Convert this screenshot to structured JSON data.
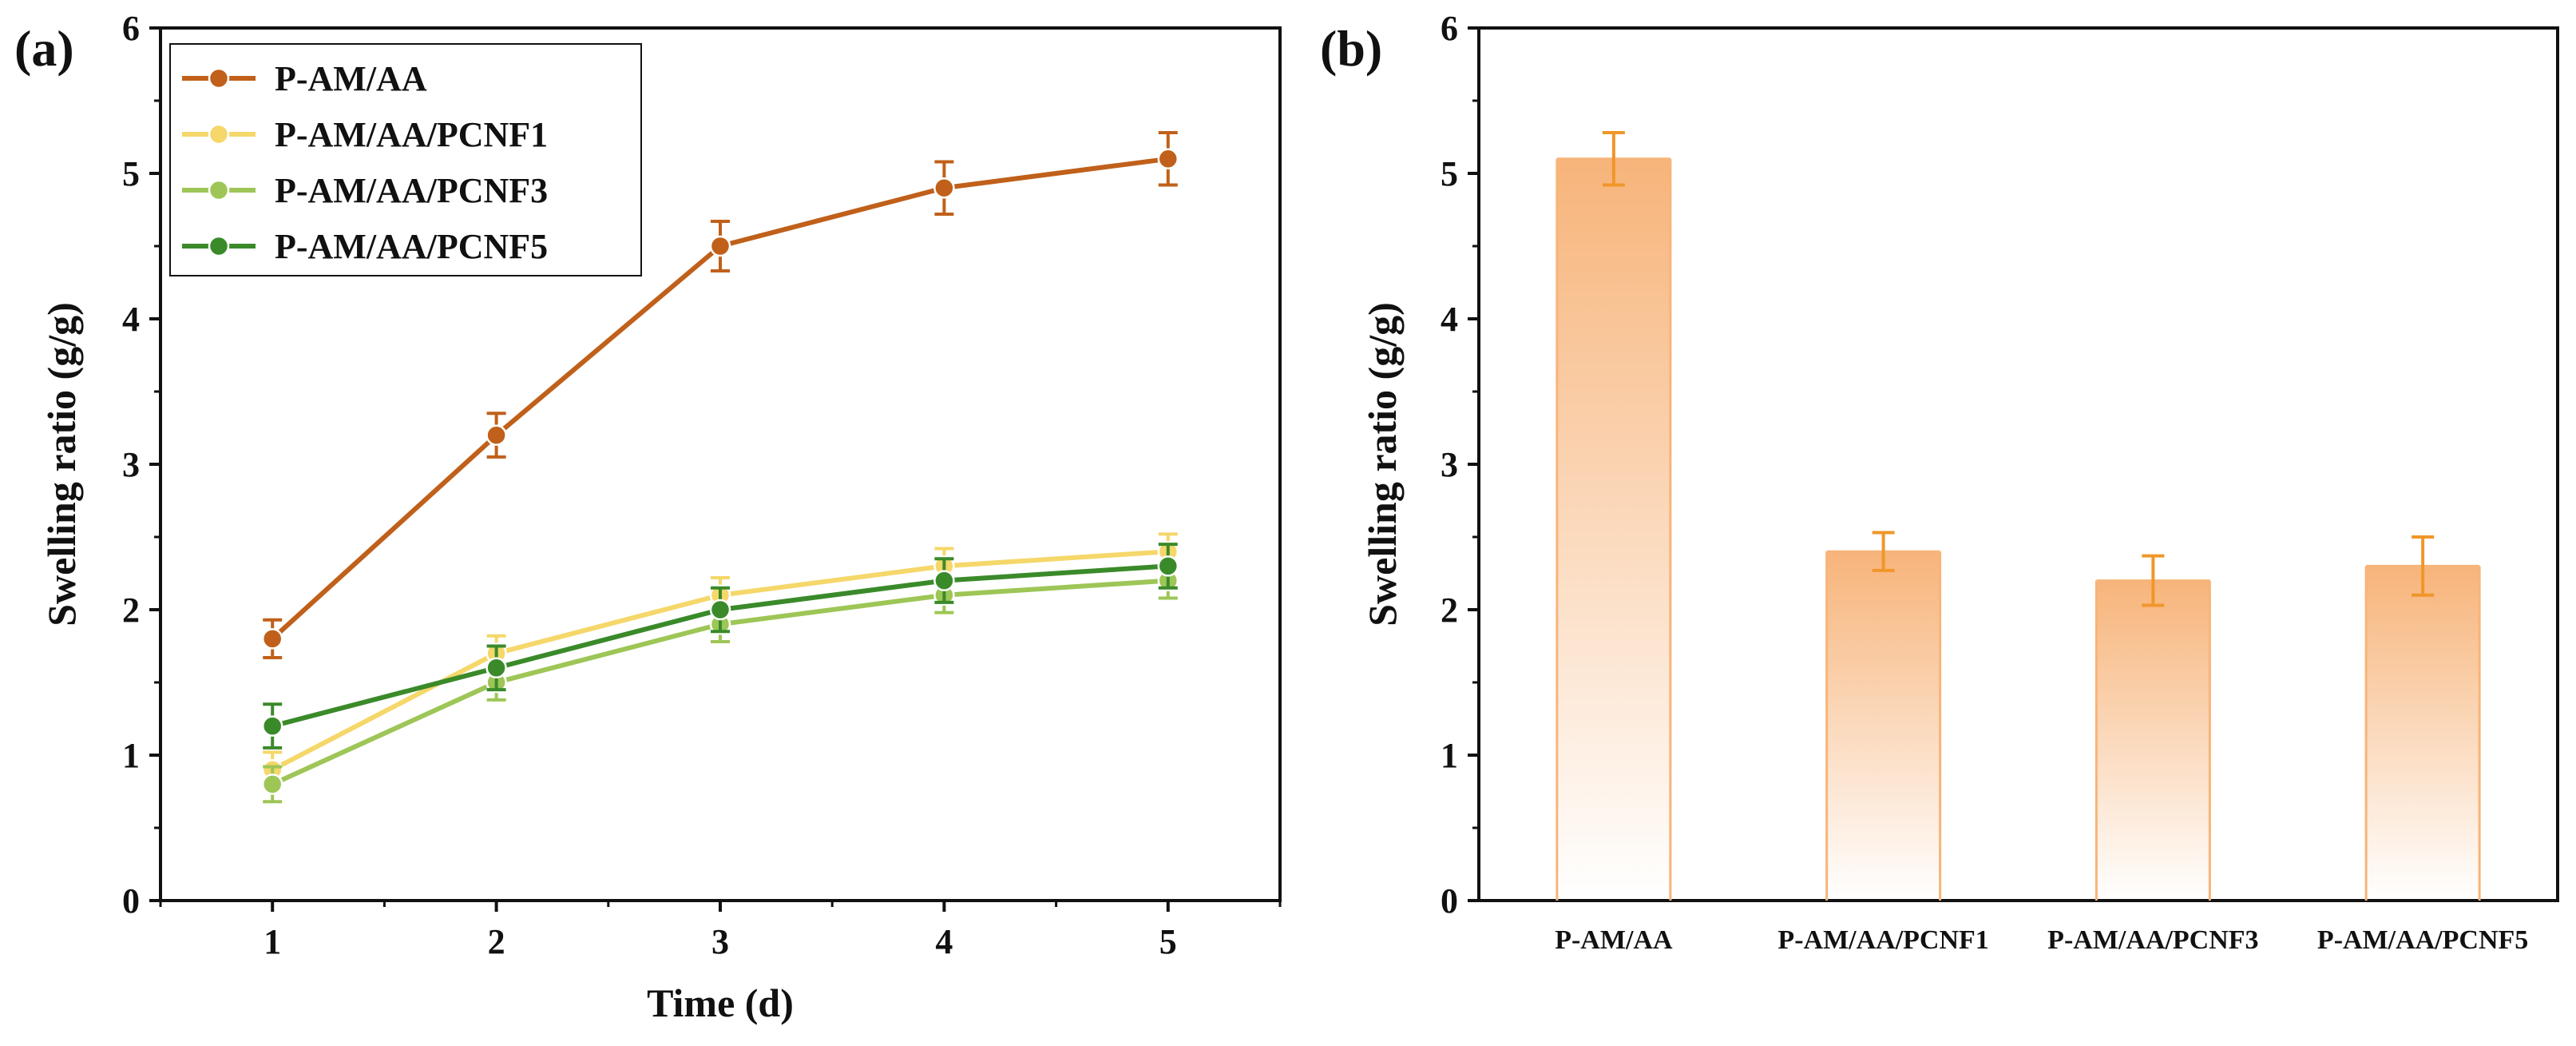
{
  "chart_data": [
    {
      "panel_label": "(a)",
      "type": "line",
      "xlabel": "Time (d)",
      "ylabel": "Swelling ratio (g/g)",
      "x": [
        1,
        2,
        3,
        4,
        5
      ],
      "xticks": [
        "1",
        "2",
        "3",
        "4",
        "5"
      ],
      "yticks": [
        "0",
        "1",
        "2",
        "3",
        "4",
        "5",
        "6"
      ],
      "xlim": [
        0.5,
        5.5
      ],
      "ylim": [
        0,
        6
      ],
      "legend_position": "top-left",
      "series": [
        {
          "name": "P-AM/AA",
          "color": "#c0601a",
          "values": [
            1.8,
            3.2,
            4.5,
            4.9,
            5.1
          ],
          "errors": [
            0.13,
            0.15,
            0.17,
            0.18,
            0.18
          ]
        },
        {
          "name": "P-AM/AA/PCNF1",
          "color": "#f5d76a",
          "values": [
            0.9,
            1.7,
            2.1,
            2.3,
            2.4
          ],
          "errors": [
            0.12,
            0.12,
            0.12,
            0.12,
            0.12
          ]
        },
        {
          "name": "P-AM/AA/PCNF3",
          "color": "#9dc656",
          "values": [
            0.8,
            1.5,
            1.9,
            2.1,
            2.2
          ],
          "errors": [
            0.12,
            0.12,
            0.12,
            0.12,
            0.12
          ]
        },
        {
          "name": "P-AM/AA/PCNF5",
          "color": "#3a8a2a",
          "values": [
            1.2,
            1.6,
            2.0,
            2.2,
            2.3
          ],
          "errors": [
            0.15,
            0.15,
            0.15,
            0.15,
            0.15
          ]
        }
      ]
    },
    {
      "panel_label": "(b)",
      "type": "bar",
      "xlabel": "",
      "ylabel": "Swelling ratio (g/g)",
      "categories": [
        "P-AM/AA",
        "P-AM/AA/PCNF1",
        "P-AM/AA/PCNF3",
        "P-AM/AA/PCNF5"
      ],
      "values": [
        5.1,
        2.4,
        2.2,
        2.3
      ],
      "errors": [
        0.18,
        0.13,
        0.17,
        0.2
      ],
      "yticks": [
        "0",
        "1",
        "2",
        "3",
        "4",
        "5",
        "6"
      ],
      "ylim": [
        0,
        6
      ],
      "bar_color": "#f7b47a",
      "error_color": "#f0962a"
    }
  ]
}
